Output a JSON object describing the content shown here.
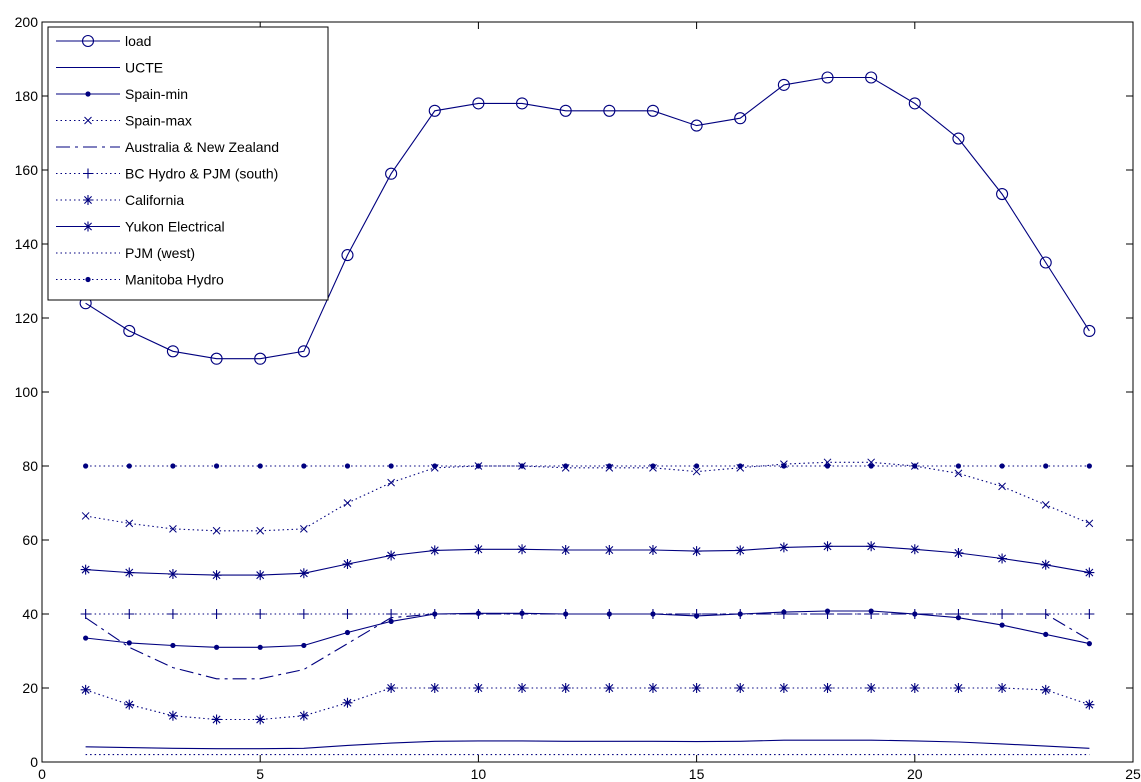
{
  "chart_data": {
    "type": "line",
    "title": "",
    "xlabel": "",
    "ylabel": "",
    "xlim": [
      0,
      25
    ],
    "ylim": [
      0,
      200
    ],
    "xticks": [
      0,
      5,
      10,
      15,
      20,
      25
    ],
    "yticks": [
      0,
      20,
      40,
      60,
      80,
      100,
      120,
      140,
      160,
      180,
      200
    ],
    "grid": false,
    "legend": "top-left",
    "line_color": "#00007f",
    "x": [
      1,
      2,
      3,
      4,
      5,
      6,
      7,
      8,
      9,
      10,
      11,
      12,
      13,
      14,
      15,
      16,
      17,
      18,
      19,
      20,
      21,
      22,
      23,
      24
    ],
    "series": [
      {
        "name": "load",
        "style": "solid",
        "marker": "circle",
        "values": [
          124,
          116.5,
          111,
          109,
          109,
          111,
          137,
          159,
          176,
          178,
          178,
          176,
          176,
          176,
          172,
          174,
          183,
          185,
          185,
          178,
          168.5,
          153.5,
          135,
          116.5
        ]
      },
      {
        "name": "UCTE",
        "style": "solid",
        "marker": "none",
        "values": [
          4.1,
          3.9,
          3.7,
          3.6,
          3.6,
          3.7,
          4.5,
          5.1,
          5.6,
          5.7,
          5.7,
          5.6,
          5.6,
          5.6,
          5.5,
          5.6,
          5.9,
          5.9,
          5.9,
          5.7,
          5.4,
          4.9,
          4.3,
          3.7
        ]
      },
      {
        "name": "Spain-min",
        "style": "solid",
        "marker": "dot",
        "values": [
          33.5,
          32.2,
          31.5,
          31,
          31,
          31.5,
          35,
          38,
          40,
          40.2,
          40.2,
          40,
          40,
          40,
          39.5,
          40,
          40.5,
          40.8,
          40.8,
          40,
          39,
          37,
          34.5,
          32
        ]
      },
      {
        "name": "Spain-max",
        "style": "dotted",
        "marker": "x",
        "values": [
          66.5,
          64.5,
          63,
          62.5,
          62.5,
          63,
          70,
          75.5,
          79.5,
          80,
          80,
          79.5,
          79.5,
          79.5,
          78.5,
          79.5,
          80.5,
          81,
          81,
          80,
          78,
          74.5,
          69.5,
          64.5
        ]
      },
      {
        "name": "Australia & New Zealand",
        "style": "dashdot",
        "marker": "none",
        "values": [
          39,
          31,
          25.5,
          22.5,
          22.5,
          25,
          32,
          39,
          40,
          40,
          40,
          40,
          40,
          40,
          40,
          40,
          40,
          40,
          40,
          40,
          40,
          40,
          40,
          33
        ]
      },
      {
        "name": "BC Hydro &  PJM (south)",
        "style": "dotted",
        "marker": "plus",
        "values": [
          40,
          40,
          40,
          40,
          40,
          40,
          40,
          40,
          40,
          40,
          40,
          40,
          40,
          40,
          40,
          40,
          40,
          40,
          40,
          40,
          40,
          40,
          40,
          40
        ]
      },
      {
        "name": "California",
        "style": "dotted",
        "marker": "star",
        "values": [
          19.5,
          15.5,
          12.5,
          11.5,
          11.5,
          12.5,
          16,
          20,
          20,
          20,
          20,
          20,
          20,
          20,
          20,
          20,
          20,
          20,
          20,
          20,
          20,
          20,
          19.5,
          15.5
        ]
      },
      {
        "name": "Yukon Electrical",
        "style": "solid",
        "marker": "star",
        "values": [
          52,
          51.2,
          50.8,
          50.5,
          50.5,
          51,
          53.5,
          55.8,
          57.2,
          57.5,
          57.5,
          57.3,
          57.3,
          57.3,
          57,
          57.2,
          58,
          58.3,
          58.3,
          57.5,
          56.5,
          55,
          53.3,
          51.2
        ]
      },
      {
        "name": "PJM (west)",
        "style": "dotted",
        "marker": "none",
        "values": [
          2,
          2,
          2,
          2,
          2,
          2,
          2,
          2,
          2,
          2,
          2,
          2,
          2,
          2,
          2,
          2,
          2,
          2,
          2,
          2,
          2,
          2,
          2,
          2
        ]
      },
      {
        "name": "Manitoba Hydro",
        "style": "dotted",
        "marker": "dot",
        "values": [
          80,
          80,
          80,
          80,
          80,
          80,
          80,
          80,
          80,
          80,
          80,
          80,
          80,
          80,
          80,
          80,
          80,
          80,
          80,
          80,
          80,
          80,
          80,
          80
        ]
      }
    ]
  }
}
